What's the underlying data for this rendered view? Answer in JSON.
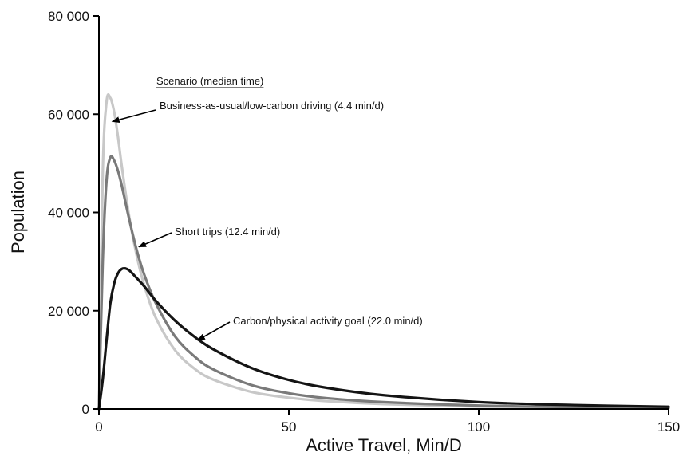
{
  "chart_data": {
    "type": "line",
    "title": "",
    "xlabel": "Active Travel, Min/D",
    "ylabel": "Population",
    "xlim": [
      0,
      150
    ],
    "ylim": [
      0,
      80000
    ],
    "xticks": [
      0,
      50,
      100,
      150
    ],
    "xtick_labels": [
      "0",
      "50",
      "100",
      "150"
    ],
    "yticks": [
      0,
      20000,
      40000,
      60000,
      80000
    ],
    "ytick_labels": [
      "0",
      "20 000",
      "40 000",
      "60 000",
      "80 000"
    ],
    "grid": false,
    "legend_title": "Scenario (median time)",
    "series": [
      {
        "name": "Business-as-usual/low-carbon driving (4.4 min/d)",
        "color": "#c8c8c8",
        "x": [
          0,
          1,
          2,
          3,
          4,
          5,
          6,
          8,
          10,
          12,
          15,
          20,
          25,
          30,
          40,
          50,
          60,
          75,
          100,
          125,
          150
        ],
        "y": [
          0,
          48000,
          62500,
          63300,
          60500,
          55500,
          49500,
          39000,
          31000,
          25000,
          18500,
          12000,
          8300,
          6000,
          3500,
          2300,
          1600,
          1000,
          500,
          280,
          180
        ]
      },
      {
        "name": "Short trips (12.4 min/d)",
        "color": "#7a7a7a",
        "x": [
          0,
          1,
          2,
          3,
          4,
          5,
          6,
          8,
          10,
          12,
          15,
          20,
          25,
          30,
          40,
          50,
          60,
          75,
          100,
          125,
          150
        ],
        "y": [
          0,
          30000,
          46500,
          51200,
          50600,
          48500,
          45500,
          38500,
          32200,
          27200,
          21500,
          14800,
          10800,
          8100,
          4900,
          3200,
          2200,
          1400,
          700,
          400,
          250
        ]
      },
      {
        "name": "Carbon/physical activity goal (22.0 min/d)",
        "color": "#141414",
        "x": [
          0,
          1,
          2,
          3,
          4,
          5,
          6,
          7,
          8,
          10,
          12,
          15,
          20,
          25,
          30,
          40,
          50,
          60,
          75,
          100,
          125,
          150
        ],
        "y": [
          0,
          6000,
          14000,
          21500,
          25500,
          27600,
          28500,
          28600,
          28200,
          26600,
          24900,
          22000,
          18000,
          14800,
          12200,
          8400,
          5900,
          4300,
          2800,
          1400,
          800,
          450
        ]
      }
    ],
    "annotations": [
      {
        "text": "Business-as-usual/low-carbon driving (4.4 min/d)",
        "series": 0,
        "arrow_to": [
          3.5,
          58500
        ]
      },
      {
        "text": "Short trips (12.4 min/d)",
        "series": 1,
        "arrow_to": [
          10.5,
          33000
        ]
      },
      {
        "text": "Carbon/physical activity goal (22.0 min/d)",
        "series": 2,
        "arrow_to": [
          26,
          14000
        ]
      }
    ]
  }
}
